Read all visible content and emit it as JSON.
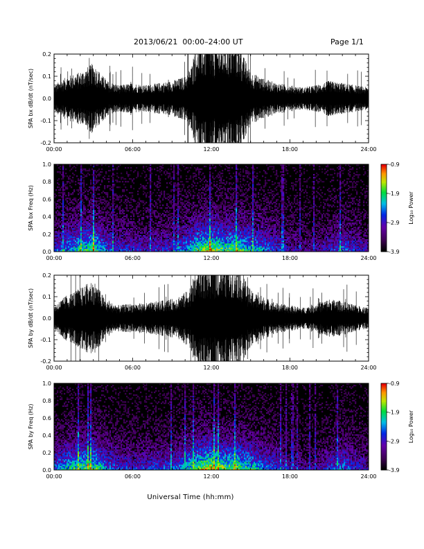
{
  "header": {
    "title": "2013/06/21  00:00–24:00 UT",
    "page": "Page 1/1"
  },
  "xaxis_title": "Universal Time (hh:mm)",
  "colorbar": {
    "label": "Log₁₀ Power",
    "ticks": [
      "-0.9",
      "-1.9",
      "-2.9",
      "-3.9"
    ]
  },
  "chart_data": [
    {
      "type": "line",
      "ylabel": "SPA bx dB/dt (nT/sec)",
      "xlim": [
        0,
        24
      ],
      "ylim": [
        -0.2,
        0.2
      ],
      "xticks": [
        "00:00",
        "06:00",
        "12:00",
        "18:00",
        "24:00"
      ],
      "yticks": [
        "0.2",
        "0.1",
        "0.0",
        "-0.1",
        "-0.2"
      ],
      "series": [
        {
          "x": [
            0,
            1,
            2,
            3,
            4,
            5,
            6,
            7,
            8,
            9,
            10,
            10.5,
            11,
            12,
            13,
            14,
            15,
            16,
            17,
            18,
            19,
            20,
            21,
            22,
            23,
            24
          ],
          "envelope": [
            0.06,
            0.1,
            0.12,
            0.16,
            0.08,
            0.06,
            0.07,
            0.06,
            0.07,
            0.08,
            0.1,
            0.15,
            0.25,
            0.25,
            0.25,
            0.25,
            0.12,
            0.09,
            0.07,
            0.06,
            0.05,
            0.06,
            0.08,
            0.07,
            0.06,
            0.05
          ]
        }
      ]
    },
    {
      "type": "heatmap",
      "ylabel": "SPA bx Freq (Hz)",
      "xlim": [
        0,
        24
      ],
      "ylim": [
        0.0,
        1.0
      ],
      "xticks": [
        "00:00",
        "06:00",
        "12:00",
        "18:00",
        "24:00"
      ],
      "yticks": [
        "1.0",
        "0.8",
        "0.6",
        "0.4",
        "0.2",
        "0.0"
      ],
      "zlim": [
        -3.9,
        -0.9
      ],
      "activity_x": [
        0,
        1,
        2,
        3,
        4,
        5,
        6,
        7,
        8,
        9,
        10,
        11,
        12,
        13,
        14,
        15,
        16,
        17,
        18,
        19,
        20,
        21,
        22,
        23,
        24
      ],
      "activity": [
        0.5,
        0.6,
        0.75,
        0.85,
        0.55,
        0.45,
        0.45,
        0.4,
        0.45,
        0.45,
        0.6,
        0.85,
        0.95,
        0.8,
        0.85,
        0.7,
        0.6,
        0.5,
        0.35,
        0.3,
        0.3,
        0.4,
        0.55,
        0.45,
        0.35
      ]
    },
    {
      "type": "line",
      "ylabel": "SPA by dB/dt (nT/sec)",
      "xlim": [
        0,
        24
      ],
      "ylim": [
        -0.2,
        0.2
      ],
      "xticks": [
        "00:00",
        "06:00",
        "12:00",
        "18:00",
        "24:00"
      ],
      "yticks": [
        "0.2",
        "0.1",
        "0.0",
        "-0.1",
        "-0.2"
      ],
      "series": [
        {
          "x": [
            0,
            1,
            2,
            3,
            4,
            5,
            6,
            7,
            8,
            9,
            10,
            10.5,
            11,
            12,
            13,
            14,
            15,
            16,
            17,
            18,
            19,
            20,
            21,
            22,
            23,
            24
          ],
          "envelope": [
            0.06,
            0.11,
            0.14,
            0.18,
            0.08,
            0.06,
            0.07,
            0.07,
            0.08,
            0.09,
            0.12,
            0.16,
            0.25,
            0.25,
            0.25,
            0.25,
            0.13,
            0.1,
            0.07,
            0.06,
            0.05,
            0.07,
            0.09,
            0.08,
            0.06,
            0.05
          ]
        }
      ]
    },
    {
      "type": "heatmap",
      "ylabel": "SPA by Freq (Hz)",
      "xlim": [
        0,
        24
      ],
      "ylim": [
        0.0,
        1.0
      ],
      "xticks": [
        "00:00",
        "06:00",
        "12:00",
        "18:00",
        "24:00"
      ],
      "yticks": [
        "1.0",
        "0.8",
        "0.6",
        "0.4",
        "0.2",
        "0.0"
      ],
      "zlim": [
        -3.9,
        -0.9
      ],
      "activity_x": [
        0,
        1,
        2,
        3,
        4,
        5,
        6,
        7,
        8,
        9,
        10,
        11,
        12,
        13,
        14,
        15,
        16,
        17,
        18,
        19,
        20,
        21,
        22,
        23,
        24
      ],
      "activity": [
        0.55,
        0.7,
        0.8,
        0.85,
        0.6,
        0.45,
        0.45,
        0.45,
        0.5,
        0.5,
        0.65,
        0.9,
        1.0,
        0.85,
        0.85,
        0.75,
        0.6,
        0.5,
        0.35,
        0.3,
        0.3,
        0.45,
        0.6,
        0.45,
        0.35
      ]
    }
  ]
}
